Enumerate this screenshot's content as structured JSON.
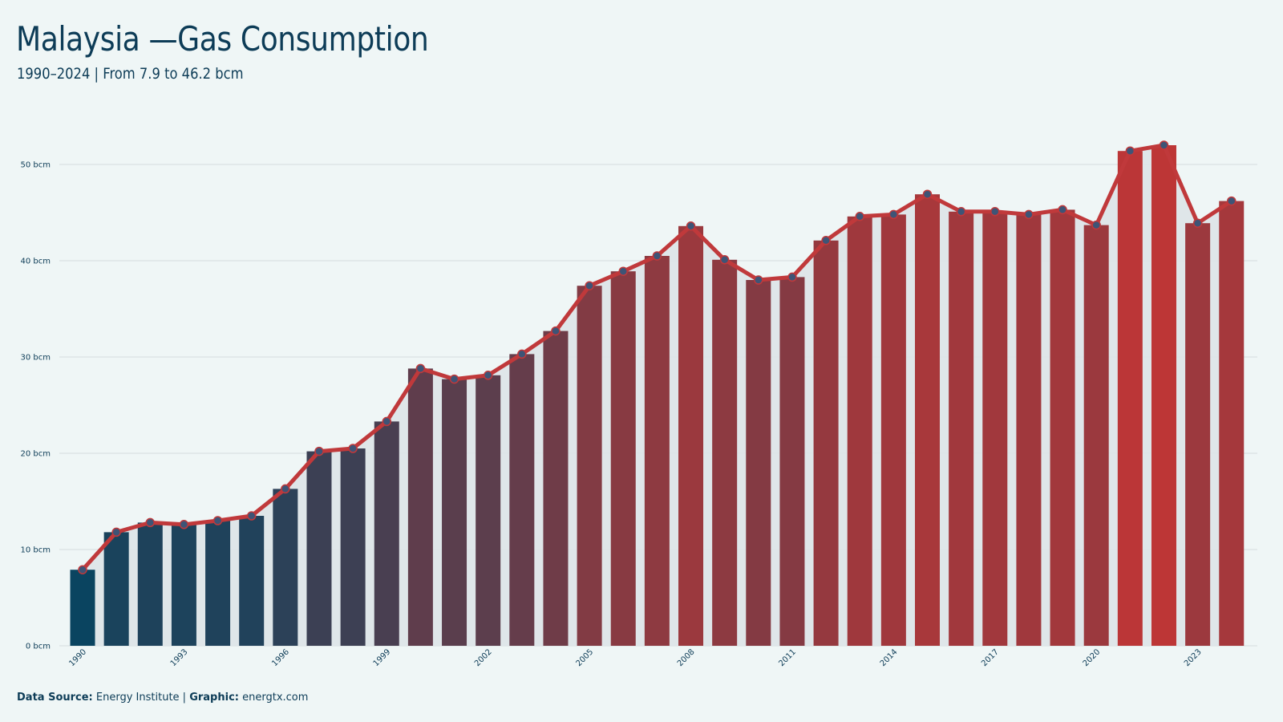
{
  "header": {
    "title": "Malaysia —Gas Consumption",
    "subtitle": "1990–2024 | From 7.9 to 46.2 bcm"
  },
  "footer": {
    "source_label": "Data Source:",
    "source_value": "Energy Institute |",
    "graphic_label": "Graphic:",
    "graphic_value": "energtx.com"
  },
  "colors": {
    "bar_start": "#0a4460",
    "bar_end": "#bd3636",
    "line": "#c0393b",
    "marker": "#3e5476",
    "grid": "#d4dcdf",
    "area": "#dde4e8"
  },
  "chart_data": {
    "type": "bar",
    "ylim": [
      0,
      55
    ],
    "y_ticks": [
      0,
      10,
      20,
      30,
      40,
      50
    ],
    "y_tick_labels": [
      "0 bcm",
      "10 bcm",
      "20 bcm",
      "30 bcm",
      "40 bcm",
      "50 bcm"
    ],
    "x_tick_labels": [
      "1990",
      "1993",
      "1996",
      "1999",
      "2002",
      "2005",
      "2008",
      "2011",
      "2014",
      "2017",
      "2020",
      "2023"
    ],
    "grid": true,
    "categories": [
      "1990",
      "1991",
      "1992",
      "1993",
      "1994",
      "1995",
      "1996",
      "1997",
      "1998",
      "1999",
      "2000",
      "2001",
      "2002",
      "2003",
      "2004",
      "2005",
      "2006",
      "2007",
      "2008",
      "2009",
      "2010",
      "2011",
      "2012",
      "2013",
      "2014",
      "2015",
      "2016",
      "2017",
      "2018",
      "2019",
      "2020",
      "2021",
      "2022",
      "2023",
      "2024"
    ],
    "values": [
      7.9,
      11.8,
      12.8,
      12.6,
      13.0,
      13.5,
      16.3,
      20.2,
      20.5,
      23.3,
      28.8,
      27.7,
      28.1,
      30.3,
      32.7,
      37.4,
      38.9,
      40.5,
      43.6,
      40.1,
      38.0,
      38.3,
      42.1,
      44.6,
      44.8,
      46.9,
      45.1,
      45.1,
      44.8,
      45.3,
      43.7,
      51.4,
      52.0,
      43.9,
      46.2
    ]
  }
}
